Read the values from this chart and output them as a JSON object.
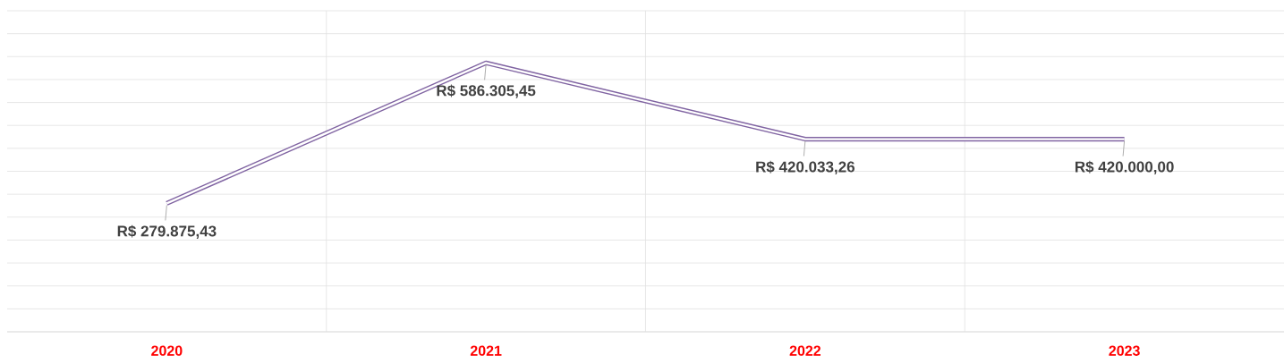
{
  "chart_data": {
    "type": "line",
    "categories": [
      "2020",
      "2021",
      "2022",
      "2023"
    ],
    "series": [
      {
        "color": "#8064a2",
        "values": [
          279875.43,
          586305.45,
          420033.26,
          420000.0
        ],
        "value_labels": [
          "R$ 279.875,43",
          "R$ 586.305,45",
          "R$ 420.033,26",
          "R$ 420.000,00"
        ]
      }
    ],
    "ylim": [
      0,
      700000
    ],
    "tick_labels": "x",
    "grid": true
  }
}
